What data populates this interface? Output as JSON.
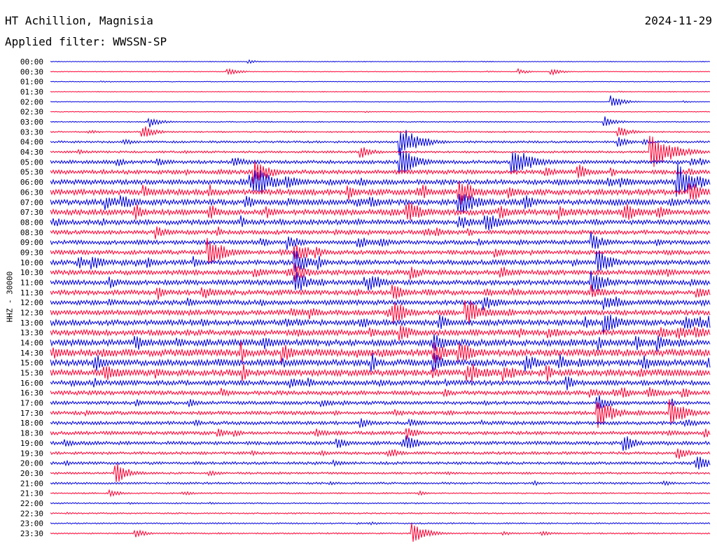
{
  "station": "HT Achillion, Magnisia",
  "date": "2024-11-29",
  "filter_label": "Applied filter: WWSSN-SP",
  "channel_label": "HHZ - 30000",
  "colors": {
    "blue": "#0000dd",
    "red": "#ff0033",
    "text": "#000000",
    "background": "#ffffff"
  },
  "chart_data": {
    "type": "line",
    "subtype": "helicorder",
    "ylabel": "HHZ - 30000",
    "row_interval_minutes": 30,
    "row_colors": [
      "blue",
      "red"
    ],
    "y_tick_labels": [
      "00:00",
      "00:30",
      "01:00",
      "01:30",
      "02:00",
      "02:30",
      "03:00",
      "03:30",
      "04:00",
      "04:30",
      "05:00",
      "05:30",
      "06:00",
      "06:30",
      "07:00",
      "07:30",
      "08:00",
      "08:30",
      "09:00",
      "09:30",
      "10:00",
      "10:30",
      "11:00",
      "11:30",
      "12:00",
      "12:30",
      "13:00",
      "13:30",
      "14:00",
      "14:30",
      "15:00",
      "15:30",
      "16:00",
      "16:30",
      "17:00",
      "17:30",
      "18:00",
      "18:30",
      "19:00",
      "19:30",
      "20:00",
      "20:30",
      "21:00",
      "21:30",
      "22:00",
      "22:30",
      "23:00",
      "23:30"
    ],
    "noise_level": [
      0.5,
      0.5,
      0.5,
      0.5,
      0.5,
      0.5,
      0.8,
      1,
      1.5,
      1.5,
      2.5,
      3,
      3.5,
      4,
      4,
      4,
      3.5,
      3,
      3,
      3,
      3.5,
      3.5,
      3.5,
      3.5,
      3.5,
      3.5,
      4,
      4,
      4.5,
      5,
      4.5,
      4.5,
      3.5,
      3,
      2.5,
      2.5,
      2.5,
      2.5,
      2.5,
      2,
      2,
      1.5,
      1.5,
      1,
      1,
      1,
      1,
      1
    ],
    "events": [
      {
        "row": 0,
        "pos": 0.3,
        "amp": 3
      },
      {
        "row": 1,
        "pos": 0.27,
        "amp": 6
      },
      {
        "row": 1,
        "pos": 0.71,
        "amp": 4
      },
      {
        "row": 1,
        "pos": 0.76,
        "amp": 5
      },
      {
        "row": 4,
        "pos": 0.85,
        "amp": 9
      },
      {
        "row": 6,
        "pos": 0.15,
        "amp": 8
      },
      {
        "row": 6,
        "pos": 0.84,
        "amp": 8
      },
      {
        "row": 7,
        "pos": 0.14,
        "amp": 10
      },
      {
        "row": 7,
        "pos": 0.86,
        "amp": 9
      },
      {
        "row": 8,
        "pos": 0.53,
        "amp": 25
      },
      {
        "row": 8,
        "pos": 0.86,
        "amp": 8
      },
      {
        "row": 9,
        "pos": 0.47,
        "amp": 10
      },
      {
        "row": 9,
        "pos": 0.91,
        "amp": 30
      },
      {
        "row": 10,
        "pos": 0.53,
        "amp": 22
      },
      {
        "row": 10,
        "pos": 0.7,
        "amp": 25
      },
      {
        "row": 11,
        "pos": 0.31,
        "amp": 20
      },
      {
        "row": 11,
        "pos": 0.8,
        "amp": 12
      },
      {
        "row": 12,
        "pos": 0.31,
        "amp": 25
      },
      {
        "row": 12,
        "pos": 0.95,
        "amp": 28
      },
      {
        "row": 13,
        "pos": 0.62,
        "amp": 20
      },
      {
        "row": 13,
        "pos": 0.97,
        "amp": 15
      },
      {
        "row": 14,
        "pos": 0.62,
        "amp": 22
      },
      {
        "row": 15,
        "pos": 0.54,
        "amp": 20
      },
      {
        "row": 15,
        "pos": 0.87,
        "amp": 15
      },
      {
        "row": 16,
        "pos": 0.66,
        "amp": 18
      },
      {
        "row": 17,
        "pos": 0.16,
        "amp": 10
      },
      {
        "row": 18,
        "pos": 0.36,
        "amp": 12
      },
      {
        "row": 18,
        "pos": 0.82,
        "amp": 15
      },
      {
        "row": 19,
        "pos": 0.24,
        "amp": 22
      },
      {
        "row": 19,
        "pos": 0.37,
        "amp": 18
      },
      {
        "row": 20,
        "pos": 0.37,
        "amp": 20
      },
      {
        "row": 20,
        "pos": 0.83,
        "amp": 18
      },
      {
        "row": 21,
        "pos": 0.37,
        "amp": 15
      },
      {
        "row": 22,
        "pos": 0.37,
        "amp": 18
      },
      {
        "row": 22,
        "pos": 0.82,
        "amp": 20
      },
      {
        "row": 23,
        "pos": 0.52,
        "amp": 12
      },
      {
        "row": 23,
        "pos": 0.82,
        "amp": 12
      },
      {
        "row": 24,
        "pos": 0.84,
        "amp": 12
      },
      {
        "row": 25,
        "pos": 0.52,
        "amp": 18
      },
      {
        "row": 25,
        "pos": 0.63,
        "amp": 22
      },
      {
        "row": 26,
        "pos": 0.59,
        "amp": 12
      },
      {
        "row": 26,
        "pos": 0.84,
        "amp": 18
      },
      {
        "row": 27,
        "pos": 0.53,
        "amp": 12
      },
      {
        "row": 28,
        "pos": 0.58,
        "amp": 15
      },
      {
        "row": 29,
        "pos": 0.58,
        "amp": 18
      },
      {
        "row": 30,
        "pos": 0.58,
        "amp": 15
      },
      {
        "row": 31,
        "pos": 0.58,
        "amp": 10
      },
      {
        "row": 33,
        "pos": 0.26,
        "amp": 8
      },
      {
        "row": 34,
        "pos": 0.83,
        "amp": 12
      },
      {
        "row": 35,
        "pos": 0.83,
        "amp": 22
      },
      {
        "row": 35,
        "pos": 0.94,
        "amp": 20
      },
      {
        "row": 36,
        "pos": 0.47,
        "amp": 8
      },
      {
        "row": 37,
        "pos": 0.54,
        "amp": 10
      },
      {
        "row": 38,
        "pos": 0.54,
        "amp": 12
      },
      {
        "row": 38,
        "pos": 0.87,
        "amp": 12
      },
      {
        "row": 39,
        "pos": 0.95,
        "amp": 10
      },
      {
        "row": 40,
        "pos": 0.43,
        "amp": 6
      },
      {
        "row": 40,
        "pos": 0.98,
        "amp": 12
      },
      {
        "row": 41,
        "pos": 0.1,
        "amp": 15
      },
      {
        "row": 43,
        "pos": 0.09,
        "amp": 6
      },
      {
        "row": 47,
        "pos": 0.55,
        "amp": 15
      },
      {
        "row": 47,
        "pos": 0.13,
        "amp": 6
      }
    ]
  }
}
